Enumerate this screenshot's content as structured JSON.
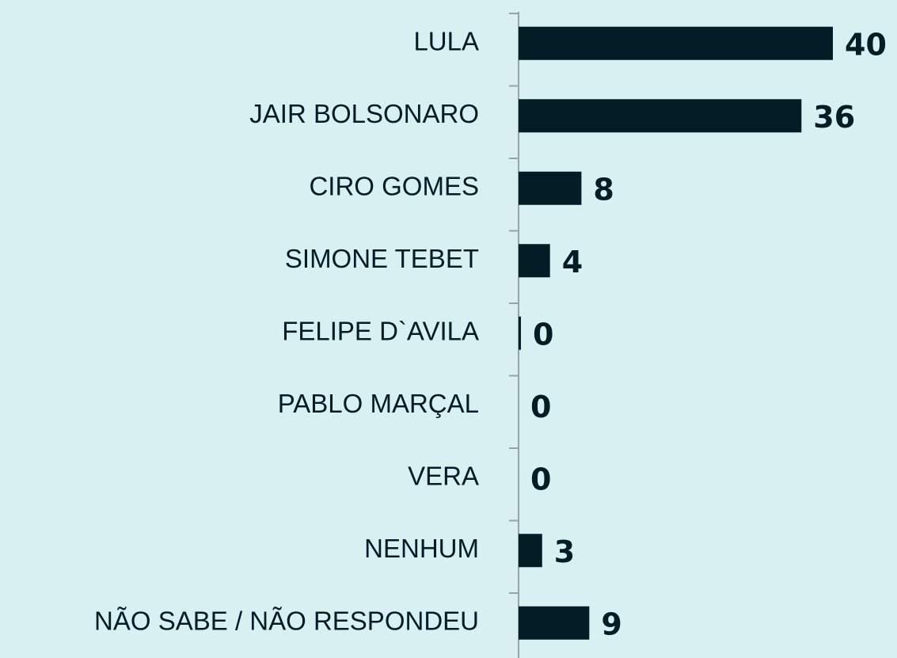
{
  "chart_data": {
    "type": "bar",
    "orientation": "horizontal",
    "categories": [
      "LULA",
      "JAIR BOLSONARO",
      "CIRO GOMES",
      "SIMONE TEBET",
      "FELIPE D`AVILA",
      "PABLO MARÇAL",
      "VERA",
      "NENHUM",
      "NÃO SABE / NÃO RESPONDEU"
    ],
    "values": [
      40,
      36,
      8,
      4,
      0.3,
      0,
      0,
      3,
      9
    ],
    "value_labels": [
      "40",
      "36",
      "8",
      "4",
      "0",
      "0",
      "0",
      "3",
      "9"
    ],
    "color": "#031c26"
  }
}
